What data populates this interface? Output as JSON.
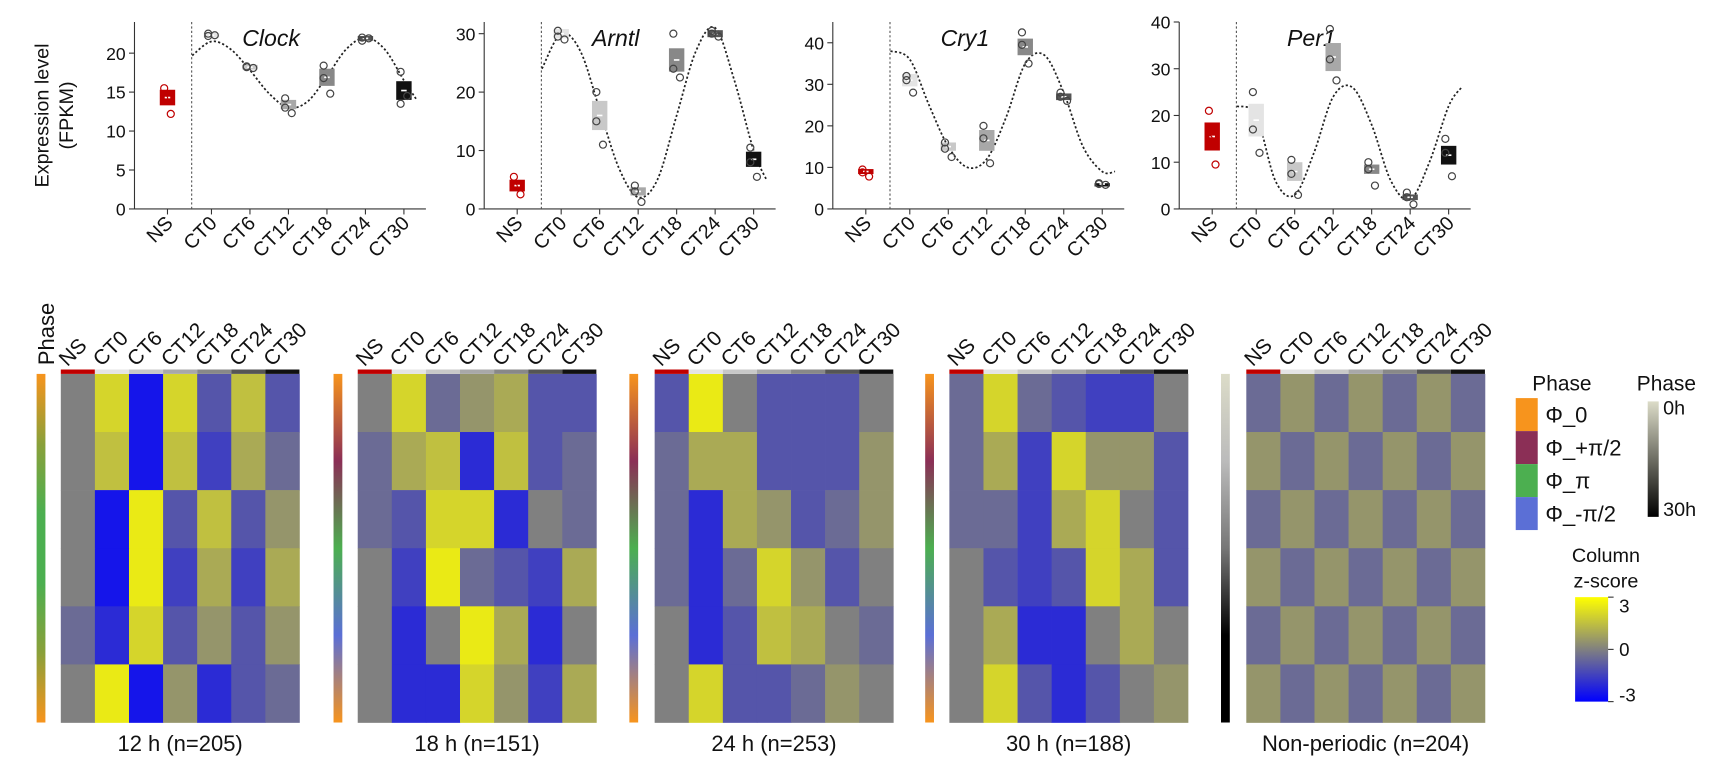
{
  "chart_data": [
    {
      "type": "dot",
      "title": "Clock",
      "ylabel": [
        "Expression level",
        "(FPKM)"
      ],
      "categories": [
        "NS",
        "CT0",
        "CT6",
        "CT12",
        "CT18",
        "CT24",
        "CT30"
      ],
      "colors": [
        "#c00000",
        "#e4e4e4",
        "#c8c8c8",
        "#a8a8a8",
        "#888888",
        "#555555",
        "#111111"
      ],
      "ylim": [
        0,
        24
      ],
      "yticks": [
        0,
        5,
        10,
        15,
        20
      ],
      "values": [
        14.3,
        22.3,
        18.2,
        13.4,
        16.9,
        21.9,
        15.2
      ],
      "errors": [
        1,
        0.3,
        0.3,
        0.6,
        1.1,
        0.3,
        1.2
      ],
      "points": [
        [
          15.5,
          14.2,
          12.2
        ],
        [
          22.5,
          22.2,
          22.3
        ],
        [
          18.3,
          18.2,
          18.1
        ],
        [
          14.2,
          13.0,
          12.3
        ],
        [
          18.4,
          16.8,
          14.8
        ],
        [
          22,
          21.6,
          21.9
        ],
        [
          17.6,
          13.5,
          14.5
        ]
      ],
      "fit": {
        "x": [
          -3,
          0,
          3,
          6,
          9,
          12,
          15,
          18,
          21,
          24,
          27,
          30,
          32
        ],
        "y": [
          19.7,
          21.5,
          20.5,
          17.8,
          14.8,
          13,
          13.8,
          17,
          20.5,
          22,
          20.5,
          16.5,
          14
        ]
      }
    },
    {
      "type": "dot",
      "title": "Arntl",
      "categories": [
        "NS",
        "CT0",
        "CT6",
        "CT12",
        "CT18",
        "CT24",
        "CT30"
      ],
      "colors": [
        "#c00000",
        "#e4e4e4",
        "#c8c8c8",
        "#a8a8a8",
        "#888888",
        "#555555",
        "#111111"
      ],
      "ylim": [
        0,
        32
      ],
      "yticks": [
        0,
        10,
        20,
        30
      ],
      "values": [
        4,
        30,
        16,
        3,
        25.5,
        30,
        8.5
      ],
      "errors": [
        1,
        0.8,
        2.5,
        0.7,
        2,
        0.6,
        1.3
      ],
      "points": [
        [
          5.5,
          3.8,
          2.5
        ],
        [
          30.5,
          29.5,
          29
        ],
        [
          20,
          15,
          11
        ],
        [
          4,
          3,
          1.2
        ],
        [
          30,
          24,
          22.5
        ],
        [
          30.5,
          30,
          29.5
        ],
        [
          10.5,
          8,
          5.5
        ]
      ],
      "fit": {
        "x": [
          -3,
          0,
          3,
          6,
          9,
          12,
          15,
          18,
          21,
          24,
          27,
          30,
          32
        ],
        "y": [
          24,
          30,
          27,
          17,
          7,
          2,
          5,
          16,
          27,
          31,
          22,
          10,
          5
        ]
      }
    },
    {
      "type": "dot",
      "title": "Cry1",
      "categories": [
        "NS",
        "CT0",
        "CT6",
        "CT12",
        "CT18",
        "CT24",
        "CT30"
      ],
      "colors": [
        "#c00000",
        "#e4e4e4",
        "#c8c8c8",
        "#a8a8a8",
        "#888888",
        "#555555",
        "#111111"
      ],
      "ylim": [
        0,
        45
      ],
      "yticks": [
        0,
        10,
        20,
        30,
        40
      ],
      "values": [
        9,
        31,
        15,
        16.5,
        39,
        27,
        6
      ],
      "errors": [
        0.6,
        1.5,
        1,
        2.5,
        2,
        0.8,
        0.2
      ],
      "points": [
        [
          9.5,
          8.8,
          7.8
        ],
        [
          32,
          31,
          28
        ],
        [
          16,
          14.5,
          12.5
        ],
        [
          20,
          17,
          11
        ],
        [
          42.5,
          39.5,
          35
        ],
        [
          28,
          27,
          26
        ],
        [
          6.2,
          6,
          5.8
        ]
      ],
      "fit": {
        "x": [
          -3,
          0,
          3,
          6,
          9,
          12,
          15,
          18,
          21,
          24,
          27,
          30,
          32
        ],
        "y": [
          38,
          36,
          25,
          15,
          10,
          12,
          22,
          35,
          37,
          28,
          15,
          9,
          9
        ]
      }
    },
    {
      "type": "dot",
      "title": "Per1",
      "categories": [
        "NS",
        "CT0",
        "CT6",
        "CT12",
        "CT18",
        "CT24",
        "CT30"
      ],
      "colors": [
        "#c00000",
        "#e4e4e4",
        "#c8c8c8",
        "#a8a8a8",
        "#888888",
        "#555555",
        "#111111"
      ],
      "ylim": [
        0,
        40
      ],
      "yticks": [
        0,
        10,
        20,
        30,
        40
      ],
      "values": [
        15.5,
        19,
        8,
        32.5,
        8.5,
        2.5,
        11.5
      ],
      "errors": [
        3,
        3.5,
        2,
        3,
        1,
        0.6,
        2
      ],
      "points": [
        [
          21,
          15,
          9.5
        ],
        [
          25,
          17,
          12
        ],
        [
          10.5,
          7.5,
          3
        ],
        [
          38.5,
          32,
          27.5
        ],
        [
          10,
          8.5,
          5
        ],
        [
          3.5,
          2.5,
          1
        ],
        [
          15,
          12,
          7
        ]
      ],
      "fit": {
        "x": [
          -3,
          0,
          3,
          6,
          9,
          12,
          15,
          18,
          21,
          24,
          27,
          30,
          32
        ],
        "y": [
          22,
          20,
          6,
          3,
          12,
          24,
          26,
          18,
          6,
          2,
          10,
          22,
          26
        ]
      }
    },
    {
      "type": "heatmap",
      "title": "12 h (n=205)",
      "phase_label": "Phase",
      "categories": [
        "NS",
        "CT0",
        "CT6",
        "CT12",
        "CT18",
        "CT24",
        "CT30"
      ],
      "colors": [
        "#c00000",
        "#e4e4e4",
        "#c8c8c8",
        "#a8a8a8",
        "#888888",
        "#555555",
        "#111111"
      ],
      "phase_colors": [
        "#f7941d",
        "#8aa03a",
        "#4caf50",
        "#4caf50",
        "#8aa03a",
        "#f7941d"
      ],
      "values": [
        [
          0,
          2,
          -2.5,
          2,
          -1,
          1.5,
          -1
        ],
        [
          0,
          1.5,
          -2.5,
          1.5,
          -1.5,
          1,
          -0.5
        ],
        [
          0,
          -2.5,
          2.5,
          -1,
          1.5,
          -1,
          0.5
        ],
        [
          0,
          -2.5,
          2.5,
          -1.5,
          1,
          -1.5,
          1
        ],
        [
          -0.5,
          -2,
          2,
          -1,
          0.5,
          -1,
          0.5
        ],
        [
          0,
          2.5,
          -2.5,
          0.5,
          -2,
          -1,
          -0.5
        ]
      ]
    },
    {
      "type": "heatmap",
      "title": "18 h (n=151)",
      "categories": [
        "NS",
        "CT0",
        "CT6",
        "CT12",
        "CT18",
        "CT24",
        "CT30"
      ],
      "colors": [
        "#c00000",
        "#e4e4e4",
        "#c8c8c8",
        "#a8a8a8",
        "#888888",
        "#555555",
        "#111111"
      ],
      "phase_colors": [
        "#f7941d",
        "#8b2f56",
        "#4caf50",
        "#5b6fd6",
        "#f7941d"
      ],
      "values": [
        [
          0,
          2,
          -0.5,
          0.5,
          1,
          -1,
          -1
        ],
        [
          -0.5,
          1,
          1.5,
          -2,
          1.5,
          -1,
          -0.5
        ],
        [
          -0.5,
          -1,
          2,
          2,
          -2,
          0,
          -0.5
        ],
        [
          0,
          -1.5,
          2.5,
          -0.5,
          -1,
          -1.5,
          1
        ],
        [
          0,
          -2,
          0,
          2.5,
          1,
          -2,
          0
        ],
        [
          0,
          -2,
          -2,
          2,
          0.5,
          -1.5,
          1
        ]
      ]
    },
    {
      "type": "heatmap",
      "title": "24 h (n=253)",
      "categories": [
        "NS",
        "CT0",
        "CT6",
        "CT12",
        "CT18",
        "CT24",
        "CT30"
      ],
      "colors": [
        "#c00000",
        "#e4e4e4",
        "#c8c8c8",
        "#a8a8a8",
        "#888888",
        "#555555",
        "#111111"
      ],
      "phase_colors": [
        "#f7941d",
        "#8b2f56",
        "#4caf50",
        "#5b6fd6",
        "#f7941d"
      ],
      "values": [
        [
          -1,
          2.5,
          0,
          -1,
          -1,
          -1,
          0
        ],
        [
          -0.5,
          1,
          1,
          -1,
          -1,
          -1,
          0.5
        ],
        [
          -0.5,
          -2,
          1,
          0.5,
          -1,
          -0.5,
          0.5
        ],
        [
          -0.5,
          -2,
          -0.5,
          2,
          0.5,
          -1,
          0
        ],
        [
          0,
          -2,
          -1,
          1.5,
          1,
          0,
          -0.5
        ],
        [
          0,
          2,
          -1,
          -1,
          -0.5,
          0.5,
          0
        ]
      ]
    },
    {
      "type": "heatmap",
      "title": "30 h (n=188)",
      "categories": [
        "NS",
        "CT0",
        "CT6",
        "CT12",
        "CT18",
        "CT24",
        "CT30"
      ],
      "colors": [
        "#c00000",
        "#e4e4e4",
        "#c8c8c8",
        "#a8a8a8",
        "#888888",
        "#555555",
        "#111111"
      ],
      "phase_colors": [
        "#f7941d",
        "#8b2f56",
        "#4caf50",
        "#5b6fd6",
        "#f7941d"
      ],
      "values": [
        [
          -0.5,
          2,
          -0.5,
          -1,
          -1.5,
          -1.5,
          0
        ],
        [
          -0.5,
          1,
          -1.5,
          2,
          0.5,
          0.5,
          -1
        ],
        [
          -0.5,
          -0.5,
          -1.5,
          1,
          2,
          0,
          -1
        ],
        [
          0,
          -1,
          -1.5,
          -1,
          2,
          1,
          -1
        ],
        [
          0,
          1,
          -2,
          -2,
          0,
          1,
          0
        ],
        [
          0,
          2,
          -1,
          -2,
          -1,
          0,
          0.5
        ]
      ]
    },
    {
      "type": "heatmap",
      "title": "Non-periodic (n=204)",
      "categories": [
        "NS",
        "CT0",
        "CT6",
        "CT12",
        "CT18",
        "CT24",
        "CT30"
      ],
      "colors": [
        "#c00000",
        "#e4e4e4",
        "#c8c8c8",
        "#a8a8a8",
        "#888888",
        "#555555",
        "#111111"
      ],
      "phase_colors": [
        "#dcdcc8",
        "#bbbbbb",
        "#777777",
        "#000000",
        "#000000"
      ],
      "values": [
        [
          -0.5,
          0.5,
          -0.5,
          0.5,
          -0.5,
          0.5,
          -0.5
        ],
        [
          0.5,
          -0.5,
          0.5,
          -0.5,
          0.5,
          -0.5,
          0.5
        ],
        [
          -0.5,
          0.5,
          -0.5,
          0.5,
          -0.5,
          0.5,
          -0.5
        ],
        [
          0.5,
          -0.5,
          0.5,
          -0.5,
          0.5,
          -0.5,
          0.5
        ],
        [
          -0.5,
          0.5,
          -0.5,
          0.5,
          -0.5,
          0.5,
          -0.5
        ],
        [
          0.5,
          -0.5,
          0.5,
          -0.5,
          0.5,
          -0.5,
          0.5
        ]
      ]
    }
  ],
  "legend": {
    "phase_title": "Phase",
    "phase_entries": [
      {
        "label": "Φ_0",
        "color": "#f7941d"
      },
      {
        "label": "Φ_+π/2",
        "color": "#8b2f56"
      },
      {
        "label": "Φ_π",
        "color": "#4caf50"
      },
      {
        "label": "Φ_-π/2",
        "color": "#5b6fd6"
      }
    ],
    "time_title": "Phase",
    "time_labels": [
      "0h",
      "30h"
    ],
    "time_colors": [
      "#dcdcc8",
      "#000000"
    ],
    "z_title": [
      "Column",
      "z-score"
    ],
    "zlim": [
      -3,
      3
    ],
    "zticks": [
      3,
      0,
      -3
    ],
    "zcolors": [
      "#0000ff",
      "#808080",
      "#ffff00"
    ]
  }
}
